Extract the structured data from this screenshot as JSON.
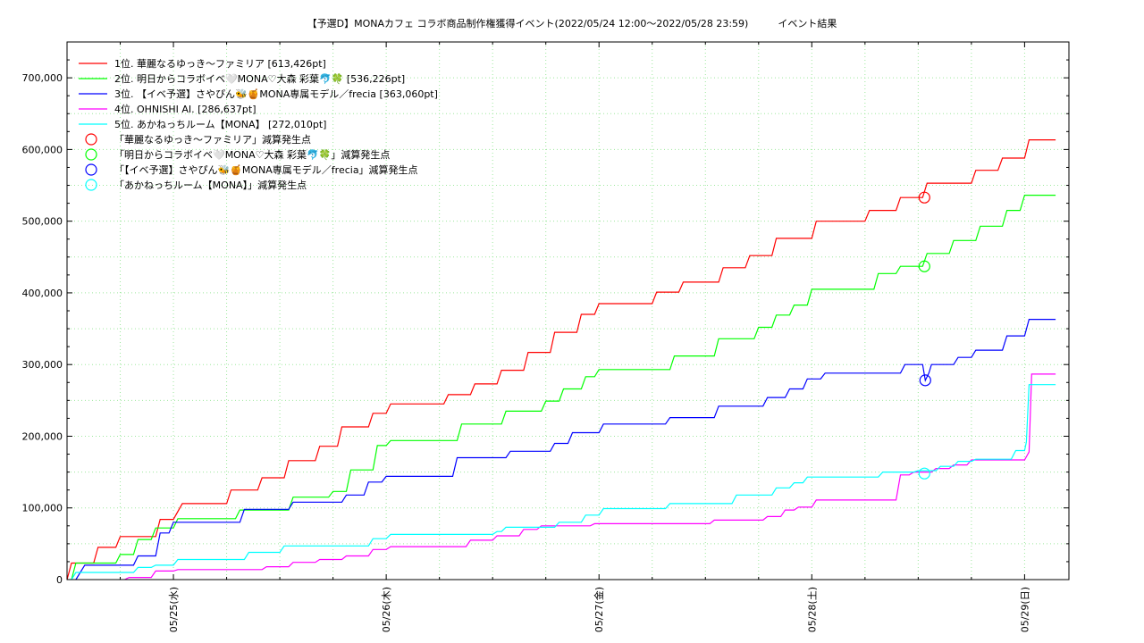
{
  "chart_data": {
    "type": "line",
    "title": "【予選D】MONAカフェ コラボ商品制作権獲得イベント(2022/05/24 12:00〜2022/05/28 23:59)　　　イベント結果",
    "xlabel": "",
    "ylabel": "",
    "ylim": [
      0,
      750000
    ],
    "xlim_hours": [
      0,
      113
    ],
    "grid": true,
    "legend_placement": "top-left",
    "x_ticks": [
      {
        "hour": 12,
        "label": "05/25(水)"
      },
      {
        "hour": 36,
        "label": "05/26(木)"
      },
      {
        "hour": 60,
        "label": "05/27(金)"
      },
      {
        "hour": 84,
        "label": "05/28(土)"
      },
      {
        "hour": 108,
        "label": "05/29(日)"
      }
    ],
    "y_ticks": [
      {
        "value": 0,
        "label": "0"
      },
      {
        "value": 100000,
        "label": "100,000"
      },
      {
        "value": 200000,
        "label": "200,000"
      },
      {
        "value": 300000,
        "label": "300,000"
      },
      {
        "value": 400000,
        "label": "400,000"
      },
      {
        "value": 500000,
        "label": "500,000"
      },
      {
        "value": 600000,
        "label": "600,000"
      },
      {
        "value": 700000,
        "label": "700,000"
      }
    ],
    "series": [
      {
        "name": "1位. 華麗なるゆっき〜ファミリア [613,426pt]",
        "color": "#ff0000",
        "points": [
          [
            0,
            0
          ],
          [
            0.5,
            23000
          ],
          [
            3,
            23000
          ],
          [
            3.5,
            45000
          ],
          [
            5.5,
            45000
          ],
          [
            6,
            60000
          ],
          [
            10,
            60000
          ],
          [
            10.5,
            84000
          ],
          [
            12,
            84000
          ],
          [
            13,
            106000
          ],
          [
            18,
            106000
          ],
          [
            18.5,
            125000
          ],
          [
            21.5,
            125000
          ],
          [
            22,
            142000
          ],
          [
            24.5,
            142000
          ],
          [
            25,
            166000
          ],
          [
            28,
            166000
          ],
          [
            28.5,
            186000
          ],
          [
            30.5,
            186000
          ],
          [
            31,
            213000
          ],
          [
            34,
            213000
          ],
          [
            34.5,
            232000
          ],
          [
            36,
            232000
          ],
          [
            36.5,
            245000
          ],
          [
            42.5,
            245000
          ],
          [
            43,
            258000
          ],
          [
            45.5,
            258000
          ],
          [
            46,
            273000
          ],
          [
            48.5,
            273000
          ],
          [
            49,
            292000
          ],
          [
            51.5,
            292000
          ],
          [
            52,
            317000
          ],
          [
            54.5,
            317000
          ],
          [
            55,
            345000
          ],
          [
            57.5,
            345000
          ],
          [
            58,
            370000
          ],
          [
            59.5,
            370000
          ],
          [
            60,
            385000
          ],
          [
            66,
            385000
          ],
          [
            66.5,
            401000
          ],
          [
            69,
            401000
          ],
          [
            69.5,
            415000
          ],
          [
            73.5,
            415000
          ],
          [
            74,
            435000
          ],
          [
            76.5,
            435000
          ],
          [
            77,
            452000
          ],
          [
            79.5,
            452000
          ],
          [
            80,
            476000
          ],
          [
            84,
            476000
          ],
          [
            84.5,
            500000
          ],
          [
            90,
            500000
          ],
          [
            90.5,
            515000
          ],
          [
            93.5,
            515000
          ],
          [
            94,
            533000
          ],
          [
            96.5,
            533000
          ],
          [
            97,
            553000
          ],
          [
            102,
            553000
          ],
          [
            102.5,
            571000
          ],
          [
            105,
            571000
          ],
          [
            105.5,
            588000
          ],
          [
            108,
            588000
          ],
          [
            108.5,
            613426
          ],
          [
            111.5,
            613426
          ]
        ]
      },
      {
        "name": "2位. 明日からコラボイベ🤍MONA♡大森 彩葉🐬🍀 [536,226pt]",
        "color": "#00ff00",
        "points": [
          [
            0.5,
            0
          ],
          [
            1,
            23000
          ],
          [
            5.5,
            23000
          ],
          [
            6,
            35000
          ],
          [
            7.5,
            35000
          ],
          [
            8,
            56000
          ],
          [
            9.5,
            56000
          ],
          [
            10,
            72000
          ],
          [
            12,
            72000
          ],
          [
            12.5,
            85000
          ],
          [
            19,
            85000
          ],
          [
            19.5,
            97000
          ],
          [
            25,
            97000
          ],
          [
            25.5,
            115000
          ],
          [
            29.5,
            115000
          ],
          [
            30,
            123000
          ],
          [
            31.5,
            123000
          ],
          [
            32,
            153000
          ],
          [
            34.5,
            153000
          ],
          [
            35,
            187000
          ],
          [
            36,
            187000
          ],
          [
            36.5,
            194000
          ],
          [
            44,
            194000
          ],
          [
            44.5,
            217000
          ],
          [
            49,
            217000
          ],
          [
            49.5,
            235000
          ],
          [
            53.5,
            235000
          ],
          [
            54,
            249000
          ],
          [
            55.5,
            249000
          ],
          [
            56,
            266000
          ],
          [
            58,
            266000
          ],
          [
            58.5,
            283000
          ],
          [
            59.5,
            283000
          ],
          [
            60,
            293000
          ],
          [
            68,
            293000
          ],
          [
            68.5,
            312000
          ],
          [
            73,
            312000
          ],
          [
            73.5,
            336000
          ],
          [
            77.5,
            336000
          ],
          [
            78,
            352000
          ],
          [
            79.5,
            352000
          ],
          [
            80,
            369000
          ],
          [
            81.5,
            369000
          ],
          [
            82,
            383000
          ],
          [
            83.5,
            383000
          ],
          [
            84,
            405000
          ],
          [
            91,
            405000
          ],
          [
            91.5,
            427000
          ],
          [
            93.5,
            427000
          ],
          [
            94,
            437000
          ],
          [
            96.5,
            437000
          ],
          [
            97,
            455000
          ],
          [
            99.5,
            455000
          ],
          [
            100,
            473000
          ],
          [
            102.5,
            473000
          ],
          [
            103,
            493000
          ],
          [
            105.5,
            493000
          ],
          [
            106,
            515000
          ],
          [
            107.5,
            515000
          ],
          [
            108,
            536226
          ],
          [
            111.5,
            536226
          ]
        ]
      },
      {
        "name": "3位. 【イベ予選】さやぴん🐝🍯MONA専属モデル／frecia [363,060pt]",
        "color": "#0000ff",
        "points": [
          [
            1,
            0
          ],
          [
            2,
            20000
          ],
          [
            7.5,
            20000
          ],
          [
            8,
            33000
          ],
          [
            10,
            33000
          ],
          [
            10.5,
            65000
          ],
          [
            11.5,
            65000
          ],
          [
            12,
            80000
          ],
          [
            19.5,
            80000
          ],
          [
            20,
            98000
          ],
          [
            25,
            98000
          ],
          [
            25.5,
            108000
          ],
          [
            31,
            108000
          ],
          [
            31.5,
            118000
          ],
          [
            33.5,
            118000
          ],
          [
            34,
            136000
          ],
          [
            35.5,
            136000
          ],
          [
            36,
            144000
          ],
          [
            43.5,
            144000
          ],
          [
            44,
            170000
          ],
          [
            49.5,
            170000
          ],
          [
            50,
            179000
          ],
          [
            54.5,
            179000
          ],
          [
            55,
            190000
          ],
          [
            56.5,
            190000
          ],
          [
            57,
            205000
          ],
          [
            60,
            205000
          ],
          [
            60.5,
            217000
          ],
          [
            67.5,
            217000
          ],
          [
            68,
            226000
          ],
          [
            73,
            226000
          ],
          [
            73.5,
            242000
          ],
          [
            78.5,
            242000
          ],
          [
            79,
            254000
          ],
          [
            81,
            254000
          ],
          [
            81.5,
            266000
          ],
          [
            83,
            266000
          ],
          [
            83.5,
            280000
          ],
          [
            85,
            280000
          ],
          [
            85.5,
            288000
          ],
          [
            94,
            288000
          ],
          [
            94.5,
            300000
          ],
          [
            96.5,
            300000
          ],
          [
            96.8,
            278000
          ],
          [
            97.2,
            288000
          ],
          [
            97.5,
            300000
          ],
          [
            100,
            300000
          ],
          [
            100.5,
            310000
          ],
          [
            102,
            310000
          ],
          [
            102.5,
            320000
          ],
          [
            105.5,
            320000
          ],
          [
            106,
            340000
          ],
          [
            108,
            340000
          ],
          [
            108.5,
            363060
          ],
          [
            111.5,
            363060
          ]
        ]
      },
      {
        "name": "4位. OHNISHI AI. [286,637pt]",
        "color": "#ff00ff",
        "points": [
          [
            6.5,
            0
          ],
          [
            7,
            3000
          ],
          [
            9.5,
            3000
          ],
          [
            10,
            12000
          ],
          [
            12,
            12000
          ],
          [
            12.5,
            14000
          ],
          [
            22,
            14000
          ],
          [
            22.5,
            18000
          ],
          [
            25,
            18000
          ],
          [
            25.5,
            24000
          ],
          [
            28,
            24000
          ],
          [
            28.5,
            28000
          ],
          [
            31,
            28000
          ],
          [
            31.5,
            33000
          ],
          [
            34,
            33000
          ],
          [
            34.5,
            42000
          ],
          [
            36,
            42000
          ],
          [
            36.5,
            46000
          ],
          [
            45,
            46000
          ],
          [
            45.5,
            55000
          ],
          [
            48,
            55000
          ],
          [
            48.5,
            61000
          ],
          [
            51,
            61000
          ],
          [
            51.5,
            70000
          ],
          [
            53,
            70000
          ],
          [
            53.5,
            75000
          ],
          [
            59,
            75000
          ],
          [
            59.5,
            78000
          ],
          [
            72.5,
            78000
          ],
          [
            73,
            83000
          ],
          [
            78.5,
            83000
          ],
          [
            79,
            88000
          ],
          [
            80.5,
            88000
          ],
          [
            81,
            97000
          ],
          [
            82,
            97000
          ],
          [
            82.5,
            101000
          ],
          [
            84,
            101000
          ],
          [
            84.5,
            111000
          ],
          [
            93.5,
            111000
          ],
          [
            94,
            146000
          ],
          [
            95,
            146000
          ],
          [
            95.5,
            150000
          ],
          [
            97.5,
            150000
          ],
          [
            98,
            155000
          ],
          [
            99.5,
            155000
          ],
          [
            100,
            160000
          ],
          [
            101.5,
            160000
          ],
          [
            102,
            167000
          ],
          [
            108,
            167000
          ],
          [
            108.5,
            178000
          ],
          [
            108.8,
            286637
          ],
          [
            111.5,
            286637
          ]
        ]
      },
      {
        "name": "5位. あかねっちルーム【MONA】 [272,010pt]",
        "color": "#00ffff",
        "points": [
          [
            0.5,
            0
          ],
          [
            1,
            10000
          ],
          [
            7.5,
            10000
          ],
          [
            8,
            17000
          ],
          [
            9.5,
            17000
          ],
          [
            10,
            20000
          ],
          [
            12,
            20000
          ],
          [
            12.5,
            28000
          ],
          [
            20,
            28000
          ],
          [
            20.5,
            38000
          ],
          [
            24,
            38000
          ],
          [
            24.5,
            47000
          ],
          [
            34,
            47000
          ],
          [
            34.5,
            57000
          ],
          [
            36,
            57000
          ],
          [
            36.5,
            63000
          ],
          [
            48,
            63000
          ],
          [
            48.5,
            67000
          ],
          [
            49,
            67000
          ],
          [
            49.5,
            73000
          ],
          [
            55,
            73000
          ],
          [
            55.5,
            80000
          ],
          [
            58,
            80000
          ],
          [
            58.5,
            90000
          ],
          [
            60,
            90000
          ],
          [
            60.5,
            99000
          ],
          [
            67.5,
            99000
          ],
          [
            68,
            106000
          ],
          [
            75,
            106000
          ],
          [
            75.5,
            118000
          ],
          [
            79.5,
            118000
          ],
          [
            80,
            128000
          ],
          [
            81.5,
            128000
          ],
          [
            82,
            135000
          ],
          [
            83,
            135000
          ],
          [
            83.5,
            143000
          ],
          [
            91.5,
            143000
          ],
          [
            92,
            150000
          ],
          [
            95.5,
            150000
          ],
          [
            96,
            152000
          ],
          [
            98,
            152000
          ],
          [
            98.5,
            158000
          ],
          [
            100,
            158000
          ],
          [
            100.5,
            165000
          ],
          [
            102,
            165000
          ],
          [
            102.5,
            168000
          ],
          [
            106.5,
            168000
          ],
          [
            107,
            180000
          ],
          [
            108,
            180000
          ],
          [
            108.2,
            192000
          ],
          [
            108.5,
            272010
          ],
          [
            111.5,
            272010
          ]
        ]
      }
    ],
    "markers": [
      {
        "name": "「華麗なるゆっき〜ファミリア」減算発生点",
        "color": "#ff0000",
        "hour": 96.7,
        "value": 533000
      },
      {
        "name": "「明日からコラボイベ🤍MONA♡大森 彩葉🐬🍀」減算発生点",
        "color": "#00ff00",
        "hour": 96.7,
        "value": 437000
      },
      {
        "name": "「【イベ予選】さやぴん🐝🍯MONA専属モデル／frecia」減算発生点",
        "color": "#0000ff",
        "hour": 96.8,
        "value": 278000
      },
      {
        "name": "「あかねっちルーム【MONA】」減算発生点",
        "color": "#00ffff",
        "hour": 96.7,
        "value": 148000
      }
    ]
  }
}
